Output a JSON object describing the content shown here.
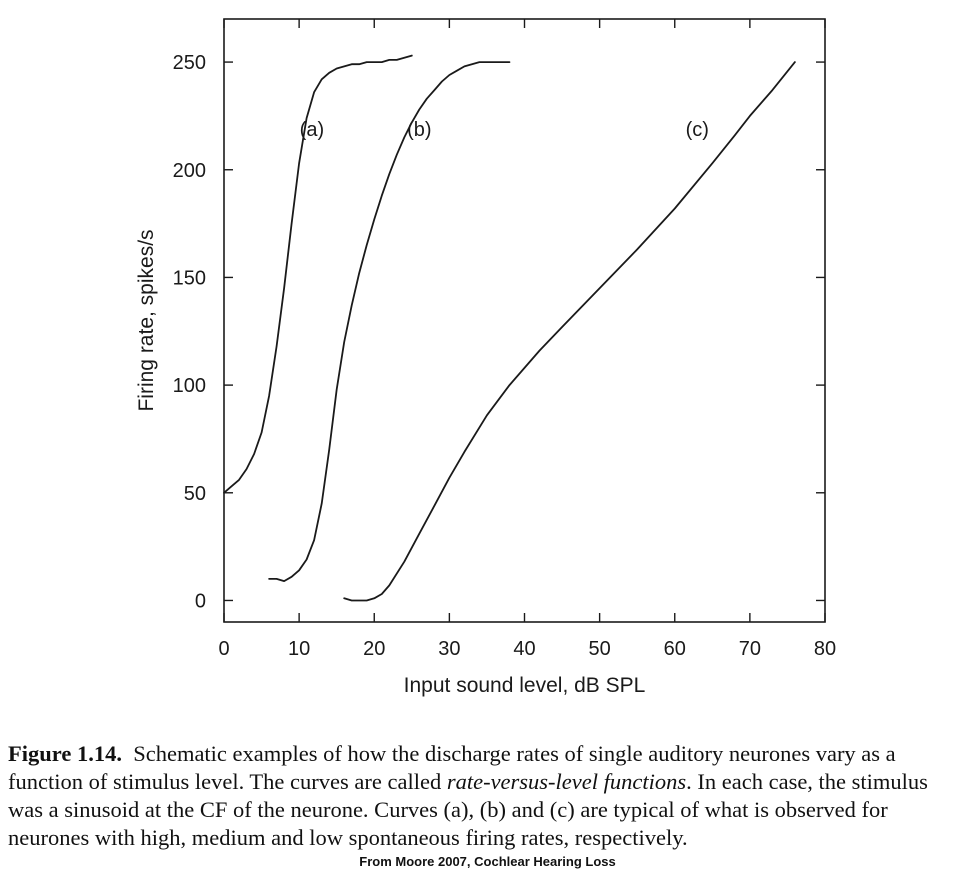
{
  "chart_data": {
    "type": "line",
    "title": "",
    "xlabel": "Input sound level, dB SPL",
    "ylabel": "Firing rate, spikes/s",
    "xlim": [
      0,
      80
    ],
    "ylim": [
      -10,
      270
    ],
    "xticks": [
      0,
      10,
      20,
      30,
      40,
      50,
      60,
      70,
      80
    ],
    "yticks": [
      0,
      50,
      100,
      150,
      200,
      250
    ],
    "grid": false,
    "legend": "none",
    "series": [
      {
        "name": "(a)",
        "x": [
          0,
          1,
          2,
          3,
          4,
          5,
          6,
          7,
          8,
          9,
          10,
          11,
          12,
          13,
          14,
          15,
          16,
          17,
          18,
          19,
          20,
          21,
          22,
          23,
          24,
          25
        ],
        "y": [
          50,
          53,
          56,
          61,
          68,
          78,
          95,
          118,
          145,
          175,
          203,
          224,
          236,
          242,
          245,
          247,
          248,
          249,
          249,
          250,
          250,
          250,
          251,
          251,
          252,
          253
        ]
      },
      {
        "name": "(b)",
        "x": [
          6,
          7,
          8,
          9,
          10,
          11,
          12,
          13,
          14,
          15,
          16,
          17,
          18,
          19,
          20,
          21,
          22,
          23,
          24,
          25,
          26,
          27,
          28,
          29,
          30,
          31,
          32,
          33,
          34,
          35,
          36,
          37,
          38
        ],
        "y": [
          10,
          10,
          9,
          11,
          14,
          19,
          28,
          45,
          70,
          98,
          120,
          137,
          152,
          165,
          177,
          188,
          198,
          207,
          215,
          222,
          228,
          233,
          237,
          241,
          244,
          246,
          248,
          249,
          250,
          250,
          250,
          250,
          250
        ]
      },
      {
        "name": "(c)",
        "x": [
          16,
          17,
          18,
          19,
          20,
          21,
          22,
          24,
          26,
          28,
          30,
          32,
          35,
          38,
          40,
          42,
          45,
          50,
          55,
          60,
          65,
          68,
          70,
          73,
          76
        ],
        "y": [
          1,
          0,
          0,
          0,
          1,
          3,
          7,
          18,
          31,
          44,
          57,
          69,
          86,
          100,
          108,
          116,
          127,
          145,
          163,
          182,
          203,
          216,
          225,
          237,
          250
        ]
      }
    ],
    "annotations": [
      {
        "text": "(a)",
        "x": 11.7,
        "y": 219
      },
      {
        "text": "(b)",
        "x": 26,
        "y": 219
      },
      {
        "text": "(c)",
        "x": 63,
        "y": 219
      }
    ]
  },
  "caption": {
    "fig_num": "Figure 1.14.",
    "text_before": "Schematic examples of how the discharge rates of single auditory neurones vary as a function of stimulus level. The curves are called",
    "term": "rate-versus-level functions",
    "text_after": ". In each case, the stimulus was a sinusoid at the CF of the neurone. Curves (a), (b) and (c) are typical of what is observed for neurones with high, medium and low spontaneous firing rates, respectively."
  },
  "credit": "From Moore 2007, Cochlear Hearing Loss"
}
